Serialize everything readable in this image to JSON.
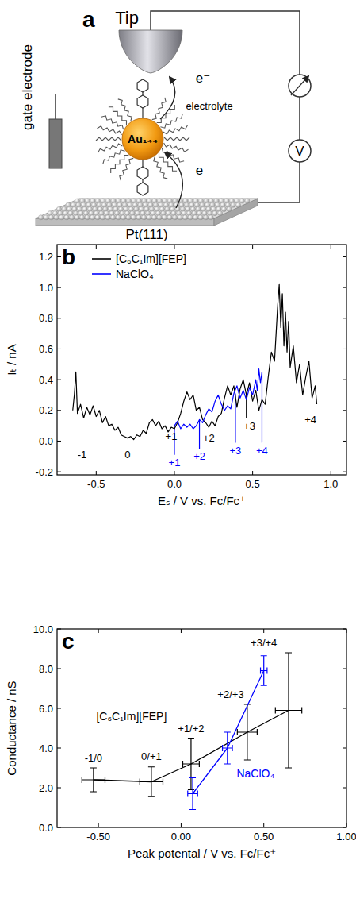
{
  "diagram": {
    "panel": "a",
    "tip": "Tip",
    "gate": "gate electrode",
    "medium": "electrolyte",
    "particle": "Au₁₄₄",
    "electrons": [
      "e⁻",
      "e⁻"
    ],
    "meter": "V",
    "substrate": "Pt(111)"
  },
  "chart_data": [
    {
      "type": "line",
      "panel": "b",
      "x_label": "Eₛ / V vs. Fc/Fc⁺",
      "y_label": "Iₜ / nA",
      "xlim": [
        -0.75,
        1.1
      ],
      "ylim": [
        -0.22,
        1.28
      ],
      "xticks": [
        -0.5,
        {
          "value": 0,
          "label": "0.0"
        },
        0.5,
        {
          "value": 1,
          "label": "1.0"
        }
      ],
      "yticks": [
        -0.2,
        {
          "value": 0,
          "label": "0.0"
        },
        0.2,
        0.4,
        0.6,
        0.8,
        {
          "value": 1,
          "label": "1.0"
        },
        1.2
      ],
      "grid": false,
      "legend": "upper left",
      "series": [
        {
          "name": "[C₆C₁Im][FEP]",
          "color": "#000000",
          "x": [
            -0.65,
            -0.64,
            -0.63,
            -0.62,
            -0.6,
            -0.58,
            -0.56,
            -0.54,
            -0.52,
            -0.5,
            -0.48,
            -0.46,
            -0.44,
            -0.42,
            -0.4,
            -0.38,
            -0.36,
            -0.34,
            -0.32,
            -0.3,
            -0.28,
            -0.26,
            -0.24,
            -0.22,
            -0.2,
            -0.18,
            -0.16,
            -0.14,
            -0.12,
            -0.1,
            -0.08,
            -0.06,
            -0.04,
            -0.02,
            0,
            0.02,
            0.04,
            0.06,
            0.08,
            0.1,
            0.12,
            0.14,
            0.16,
            0.18,
            0.2,
            0.22,
            0.24,
            0.26,
            0.28,
            0.3,
            0.32,
            0.34,
            0.36,
            0.38,
            0.4,
            0.42,
            0.44,
            0.46,
            0.48,
            0.5,
            0.52,
            0.54,
            0.56,
            0.58,
            0.6,
            0.62,
            0.64,
            0.65,
            0.66,
            0.67,
            0.68,
            0.69,
            0.7,
            0.71,
            0.72,
            0.73,
            0.74,
            0.76,
            0.78,
            0.8,
            0.82,
            0.84,
            0.86,
            0.88,
            0.9,
            0.91
          ],
          "values": [
            0.2,
            0.3,
            0.45,
            0.18,
            0.24,
            0.15,
            0.22,
            0.17,
            0.23,
            0.16,
            0.2,
            0.12,
            0.16,
            0.1,
            0.11,
            0.07,
            0.09,
            0.04,
            0.03,
            0.02,
            0.03,
            0.01,
            0.04,
            0.03,
            0.07,
            0.05,
            0.12,
            0.14,
            0.1,
            0.13,
            0.08,
            0.1,
            0.06,
            0.09,
            0.08,
            0.12,
            0.18,
            0.26,
            0.32,
            0.27,
            0.3,
            0.2,
            0.22,
            0.14,
            0.12,
            0.09,
            0.13,
            0.1,
            0.16,
            0.18,
            0.28,
            0.36,
            0.3,
            0.36,
            0.22,
            0.34,
            0.4,
            0.3,
            0.38,
            0.26,
            0.33,
            0.2,
            0.27,
            0.24,
            0.42,
            0.58,
            0.52,
            0.7,
            0.88,
            1.02,
            0.74,
            0.96,
            0.62,
            0.84,
            0.58,
            0.78,
            0.48,
            0.62,
            0.38,
            0.5,
            0.3,
            0.42,
            0.52,
            0.28,
            0.36,
            0.24
          ]
        },
        {
          "name": "NaClO₄",
          "color": "#0000ff",
          "x": [
            0,
            0.02,
            0.04,
            0.06,
            0.08,
            0.1,
            0.12,
            0.14,
            0.16,
            0.18,
            0.2,
            0.22,
            0.24,
            0.26,
            0.28,
            0.3,
            0.32,
            0.34,
            0.36,
            0.38,
            0.4,
            0.42,
            0.44,
            0.46,
            0.48,
            0.5,
            0.52,
            0.53,
            0.54,
            0.55,
            0.56
          ],
          "values": [
            0.1,
            0.13,
            0.08,
            0.11,
            0.09,
            0.11,
            0.08,
            0.1,
            0.14,
            0.12,
            0.17,
            0.21,
            0.19,
            0.26,
            0.3,
            0.24,
            0.2,
            0.23,
            0.21,
            0.31,
            0.36,
            0.28,
            0.33,
            0.27,
            0.35,
            0.3,
            0.4,
            0.33,
            0.47,
            0.38,
            0.45
          ]
        }
      ],
      "annotations": [
        {
          "text": "-1",
          "x": -0.59,
          "y": -0.09,
          "color": "#000000"
        },
        {
          "text": "0",
          "x": -0.3,
          "y": -0.09,
          "color": "#000000"
        },
        {
          "text": "+1",
          "x": -0.02,
          "y": 0.03,
          "color": "#000000"
        },
        {
          "text": "+2",
          "x": 0.22,
          "y": 0.02,
          "color": "#000000"
        },
        {
          "text": "+3",
          "x": 0.48,
          "y": 0.1,
          "color": "#000000"
        },
        {
          "text": "+4",
          "x": 0.87,
          "y": 0.14,
          "color": "#000000"
        },
        {
          "text": "+1",
          "x": 0.0,
          "y": -0.14,
          "color": "#0000ff"
        },
        {
          "text": "+2",
          "x": 0.16,
          "y": -0.1,
          "color": "#0000ff"
        },
        {
          "text": "+3",
          "x": 0.39,
          "y": -0.06,
          "color": "#0000ff"
        },
        {
          "text": "+4",
          "x": 0.56,
          "y": -0.06,
          "color": "#0000ff"
        }
      ],
      "peak_lines": [
        {
          "x": 0.0,
          "y": [
            -0.09,
            0.1
          ],
          "color": "#0000ff"
        },
        {
          "x": 0.16,
          "y": [
            -0.05,
            0.14
          ],
          "color": "#0000ff"
        },
        {
          "x": 0.39,
          "y": [
            -0.01,
            0.31
          ],
          "color": "#0000ff"
        },
        {
          "x": 0.56,
          "y": [
            -0.01,
            0.45
          ],
          "color": "#0000ff"
        },
        {
          "x": 0.46,
          "y": [
            0.15,
            0.3
          ],
          "color": "#000000"
        }
      ]
    },
    {
      "type": "line",
      "panel": "c",
      "x_label": "Peak potental / V vs. Fc/Fc⁺",
      "y_label": "Conductance / nS",
      "xlim": [
        -0.75,
        1.0
      ],
      "ylim": [
        0,
        10
      ],
      "xticks": [
        {
          "value": -0.5,
          "label": "-0.50"
        },
        {
          "value": 0,
          "label": "0.00"
        },
        {
          "value": 0.5,
          "label": "0.50"
        },
        {
          "value": 1,
          "label": "1.00"
        }
      ],
      "yticks": [
        {
          "value": 0,
          "label": "0.0"
        },
        {
          "value": 2,
          "label": "2.0"
        },
        {
          "value": 4,
          "label": "4.0"
        },
        {
          "value": 6,
          "label": "6.0"
        },
        {
          "value": 8,
          "label": "8.0"
        },
        {
          "value": 10,
          "label": "10.0"
        }
      ],
      "grid": false,
      "series": [
        {
          "name": "[C₆C₁Im][FEP]",
          "color": "#000000",
          "name_position": [
            -0.3,
            5.6
          ],
          "x": [
            -0.53,
            -0.18,
            0.06,
            0.4,
            0.65
          ],
          "values": [
            2.4,
            2.3,
            3.2,
            4.8,
            5.9
          ],
          "errors": [
            0.6,
            0.75,
            1.3,
            1.4,
            2.9
          ],
          "x_errors": [
            0.07,
            0.07,
            0.05,
            0.06,
            0.08
          ]
        },
        {
          "name": "NaClO₄",
          "color": "#0000ff",
          "name_position": [
            0.45,
            2.7
          ],
          "x": [
            0.07,
            0.28,
            0.5
          ],
          "values": [
            1.7,
            4.0,
            7.9
          ],
          "errors": [
            0.8,
            0.8,
            0.75
          ],
          "x_errors": [
            0.03,
            0.03,
            0.02
          ]
        }
      ],
      "annotations": [
        {
          "text": "-1/0",
          "x": -0.53,
          "y": 3.5,
          "color": "#000000"
        },
        {
          "text": "0/+1",
          "x": -0.18,
          "y": 3.6,
          "color": "#000000"
        },
        {
          "text": "+1/+2",
          "x": 0.06,
          "y": 5.0,
          "color": "#000000"
        },
        {
          "text": "+2/+3",
          "x": 0.3,
          "y": 6.7,
          "color": "#000000"
        },
        {
          "text": "+3/+4",
          "x": 0.5,
          "y": 9.3,
          "color": "#000000"
        }
      ]
    }
  ]
}
